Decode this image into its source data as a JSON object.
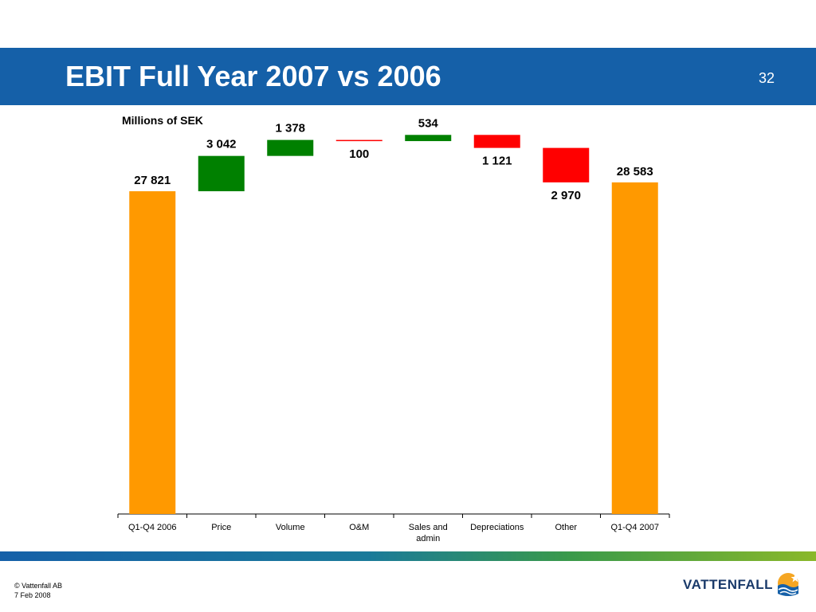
{
  "header": {
    "title": "EBIT Full Year 2007 vs 2006",
    "page_number": "32"
  },
  "footer": {
    "copyright": "© Vattenfall AB",
    "date": "7 Feb 2008",
    "logo_text": "VATTENFALL"
  },
  "colors": {
    "header_blue": "#1560a8",
    "total": "#ff9900",
    "increase": "#008000",
    "decrease": "#ff0000"
  },
  "chart_data": {
    "type": "bar",
    "subtype": "waterfall",
    "unit_label": "Millions of SEK",
    "title": "",
    "xlabel": "",
    "ylabel": "",
    "ylim": [
      0,
      34000
    ],
    "grid": false,
    "legend": "none",
    "categories": [
      {
        "label_lines": [
          "Q1-Q4 2006"
        ],
        "kind": "total",
        "value": 27821,
        "data_label": "27 821"
      },
      {
        "label_lines": [
          "Price"
        ],
        "kind": "increase",
        "value": 3042,
        "data_label": "3 042"
      },
      {
        "label_lines": [
          "Volume"
        ],
        "kind": "increase",
        "value": 1378,
        "data_label": "1 378"
      },
      {
        "label_lines": [
          "O&M"
        ],
        "kind": "decrease",
        "value": -100,
        "data_label": "100"
      },
      {
        "label_lines": [
          "Sales and",
          "admin"
        ],
        "kind": "increase",
        "value": 534,
        "data_label": "534"
      },
      {
        "label_lines": [
          "Depreciations"
        ],
        "kind": "decrease",
        "value": -1121,
        "data_label": "1 121"
      },
      {
        "label_lines": [
          "Other"
        ],
        "kind": "decrease",
        "value": -2970,
        "data_label": "2 970"
      },
      {
        "label_lines": [
          "Q1-Q4 2007"
        ],
        "kind": "total",
        "value": 28583,
        "data_label": "28 583"
      }
    ]
  }
}
